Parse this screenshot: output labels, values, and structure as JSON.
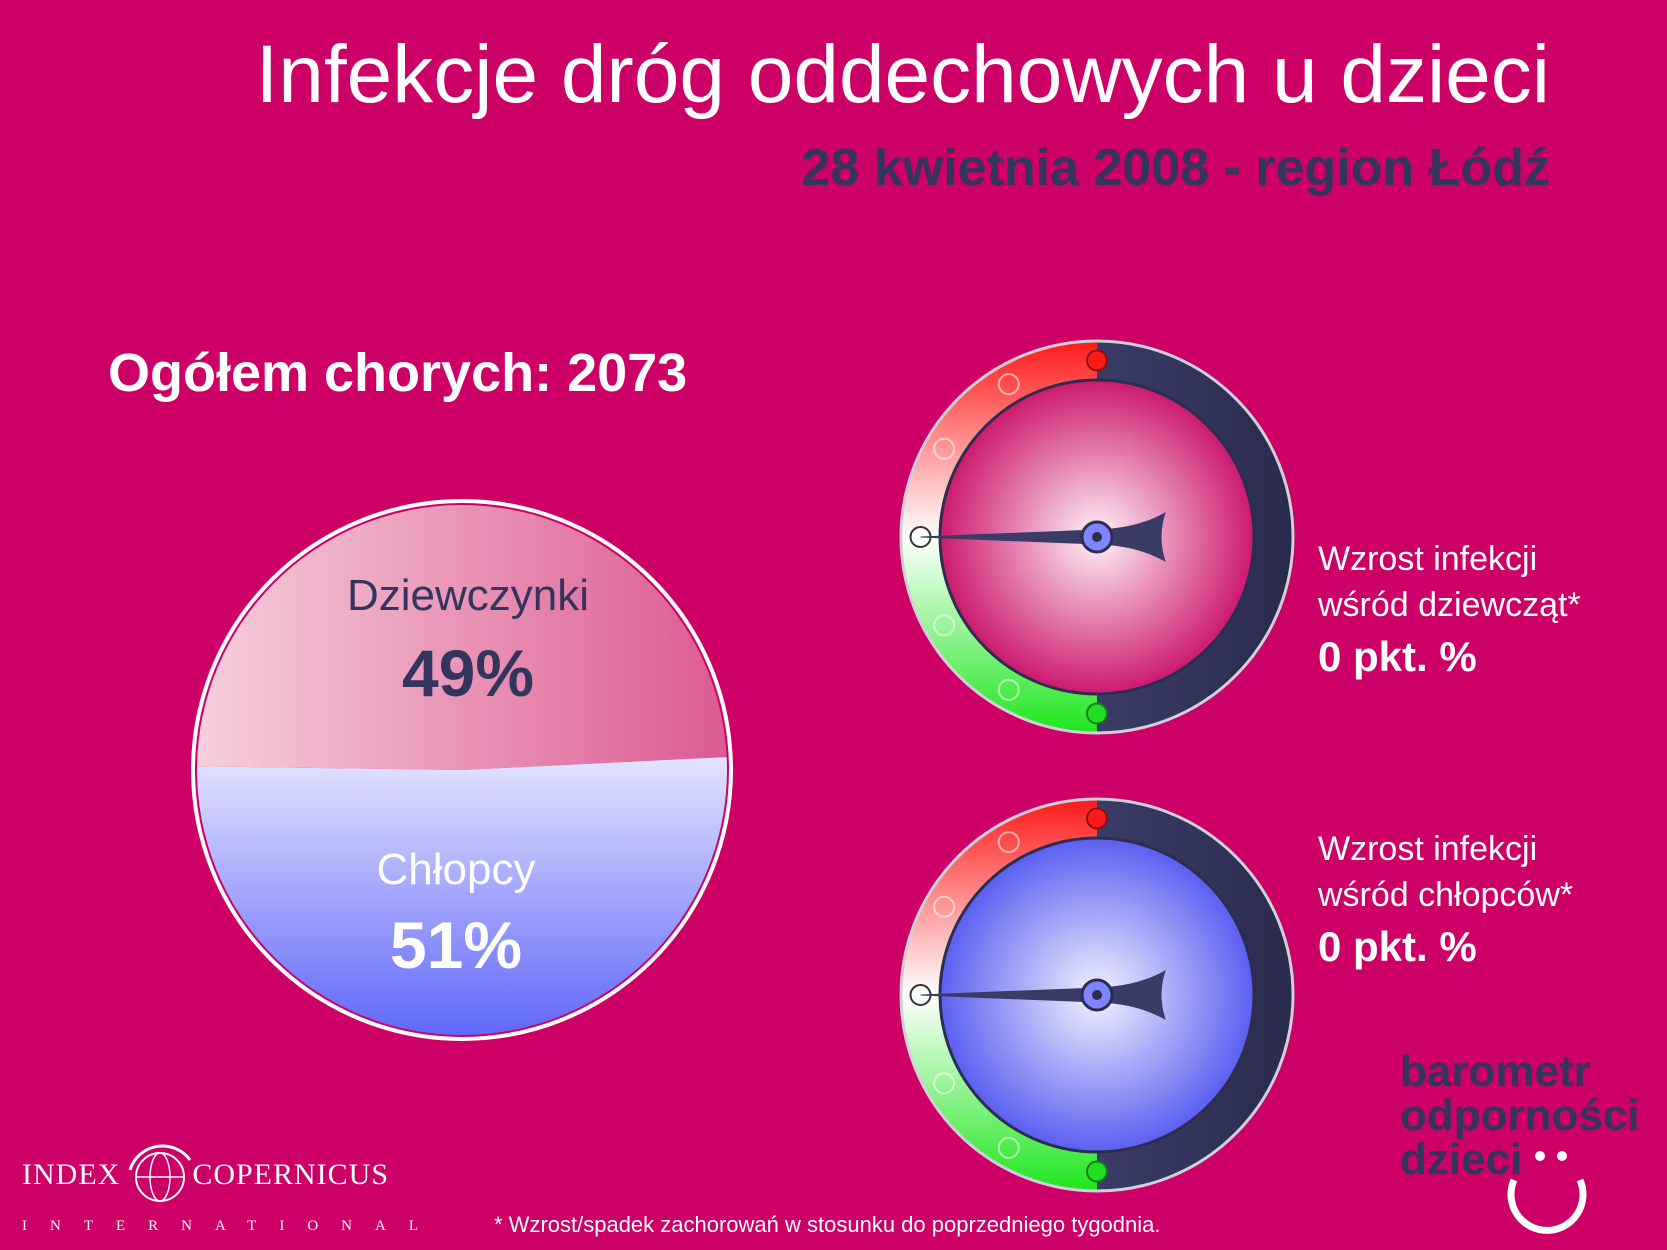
{
  "header": {
    "title": "Infekcje dróg oddechowych u dzieci",
    "subtitle": "28 kwietnia 2008 - region Łódź"
  },
  "total": {
    "label": "Ogółem chorych: 2073"
  },
  "chart_data": [
    {
      "type": "pie",
      "categories": [
        "Dziewczynki",
        "Chłopcy"
      ],
      "values": [
        49,
        51
      ],
      "labels": [
        "49%",
        "51%"
      ],
      "colors": [
        "#e0709e",
        "#7f85ff"
      ]
    },
    {
      "type": "gauge",
      "title": "Wzrost infekcji wśród dziewcząt*",
      "value": 0,
      "value_label": "0 pkt. %"
    },
    {
      "type": "gauge",
      "title": "Wzrost infekcji wśród chłopców*",
      "value": 0,
      "value_label": "0 pkt. %"
    }
  ],
  "gauges": {
    "girls": {
      "line1": "Wzrost infekcji",
      "line2": "wśród dziewcząt*",
      "value": "0 pkt. %"
    },
    "boys": {
      "line1": "Wzrost infekcji",
      "line2": "wśród chłopców*",
      "value": "0 pkt. %"
    }
  },
  "brand": {
    "line1": "barometr",
    "line2": "odporności",
    "line3": "dzieci"
  },
  "footnote": "* Wzrost/spadek zachorowań w stosunku do poprzedniego tygodnia.",
  "logo": {
    "line1": "INDEX",
    "line2": "COPERNICUS",
    "line3": "INTERNATIONAL"
  },
  "colors": {
    "background": "#cc0066",
    "navy": "#33355c",
    "girls": "#e0709e",
    "boys": "#7f85ff"
  }
}
